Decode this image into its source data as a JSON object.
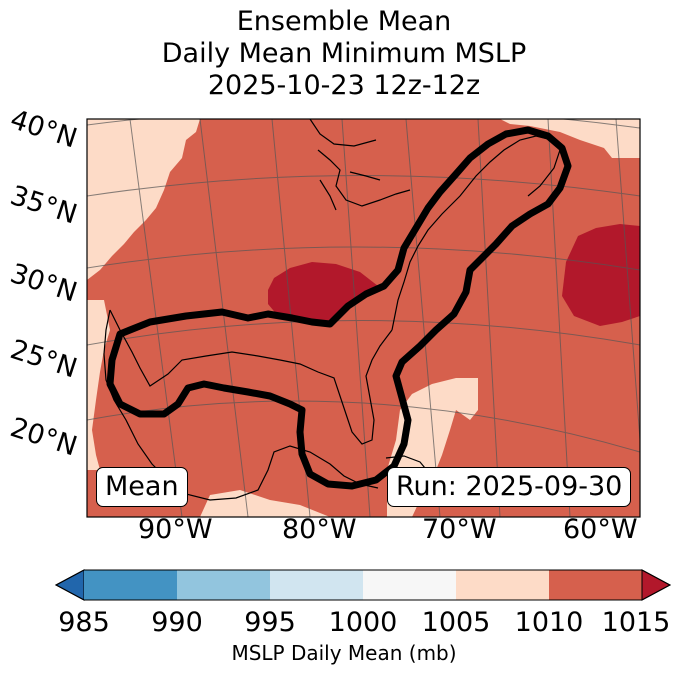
{
  "title": {
    "line1": "Ensemble Mean",
    "line2": "Daily Mean Minimum MSLP",
    "line3": "2025-10-23 12z-12z"
  },
  "map": {
    "lat_labels": [
      "40°N",
      "35°N",
      "30°N",
      "25°N",
      "20°N"
    ],
    "lon_labels": [
      "90°W",
      "80°W",
      "70°W",
      "60°W"
    ],
    "annotation_left": "Mean",
    "annotation_right": "Run: 2025-09-30",
    "colors": {
      "c1005_1010": "#fddbc7",
      "c1010_1015": "#d6604d",
      "c1015_plus": "#b2182b",
      "contour": "#000000"
    }
  },
  "colorbar": {
    "label": "MSLP Daily Mean (mb)",
    "ticks": [
      "985",
      "990",
      "995",
      "1000",
      "1005",
      "1010",
      "1015"
    ],
    "colors": [
      "#2166ac",
      "#4393c3",
      "#92c5de",
      "#d1e5f0",
      "#f7f7f7",
      "#fddbc7",
      "#d6604d",
      "#b2182b"
    ]
  }
}
